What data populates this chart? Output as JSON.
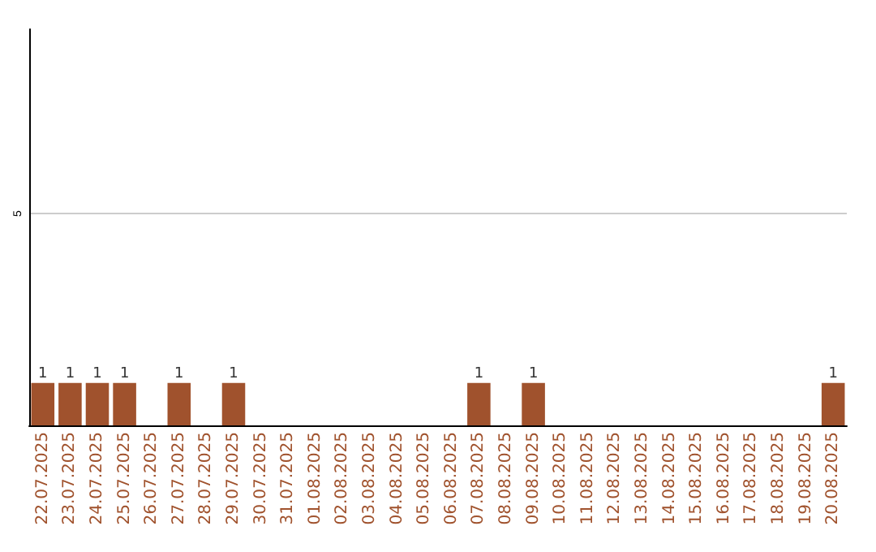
{
  "chart_data": {
    "type": "bar",
    "categories": [
      "22.07.2025",
      "23.07.2025",
      "24.07.2025",
      "25.07.2025",
      "26.07.2025",
      "27.07.2025",
      "28.07.2025",
      "29.07.2025",
      "30.07.2025",
      "31.07.2025",
      "01.08.2025",
      "02.08.2025",
      "03.08.2025",
      "04.08.2025",
      "05.08.2025",
      "06.08.2025",
      "07.08.2025",
      "08.08.2025",
      "09.08.2025",
      "10.08.2025",
      "11.08.2025",
      "12.08.2025",
      "13.08.2025",
      "14.08.2025",
      "15.08.2025",
      "16.08.2025",
      "17.08.2025",
      "18.08.2025",
      "19.08.2025",
      "20.08.2025"
    ],
    "values": [
      1,
      1,
      1,
      1,
      0,
      1,
      0,
      1,
      0,
      0,
      0,
      0,
      0,
      0,
      0,
      0,
      1,
      0,
      1,
      0,
      0,
      0,
      0,
      0,
      0,
      0,
      0,
      0,
      0,
      1
    ],
    "value_labels": [
      "1",
      "1",
      "1",
      "1",
      null,
      "1",
      null,
      "1",
      null,
      null,
      null,
      null,
      null,
      null,
      null,
      null,
      "1",
      null,
      "1",
      null,
      null,
      null,
      null,
      null,
      null,
      null,
      null,
      null,
      null,
      "1"
    ],
    "color": "#a0522d",
    "ylim": [
      0,
      9.35
    ],
    "yticks": [
      5
    ],
    "grid": "y"
  }
}
